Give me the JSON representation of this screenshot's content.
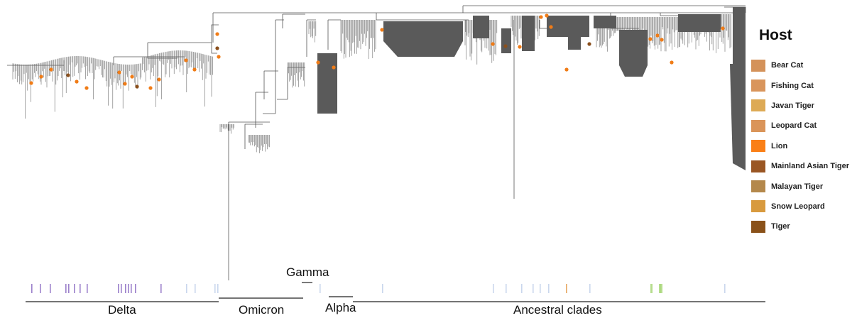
{
  "legend": {
    "title": "Host",
    "items": [
      {
        "label": "Bear Cat",
        "color": "#d4925a"
      },
      {
        "label": "Fishing Cat",
        "color": "#d9955c"
      },
      {
        "label": "Javan Tiger",
        "color": "#ddaa55"
      },
      {
        "label": "Leopard Cat",
        "color": "#da9459"
      },
      {
        "label": "Lion",
        "color": "#fa7f16"
      },
      {
        "label": "Mainland Asian Tiger",
        "color": "#9a5623"
      },
      {
        "label": "Malayan Tiger",
        "color": "#b4884b"
      },
      {
        "label": "Snow Leopard",
        "color": "#d89a3e"
      },
      {
        "label": "Tiger",
        "color": "#8a5119"
      }
    ]
  },
  "clades": {
    "delta": "Delta",
    "omicron": "Omicron",
    "gamma": "Gamma",
    "alpha": "Alpha",
    "ancestral": "Ancestral clades"
  },
  "colors": {
    "branch": "#555555",
    "dense_block": "#5a5a5a",
    "tip_marker": "#f07c17",
    "tip_marker_dark": "#8a4f1c",
    "strip_purple": "#8b6bc2",
    "strip_blue": "#9fb6df",
    "strip_orange": "#e39a4a",
    "strip_green": "#a9d77a"
  }
}
